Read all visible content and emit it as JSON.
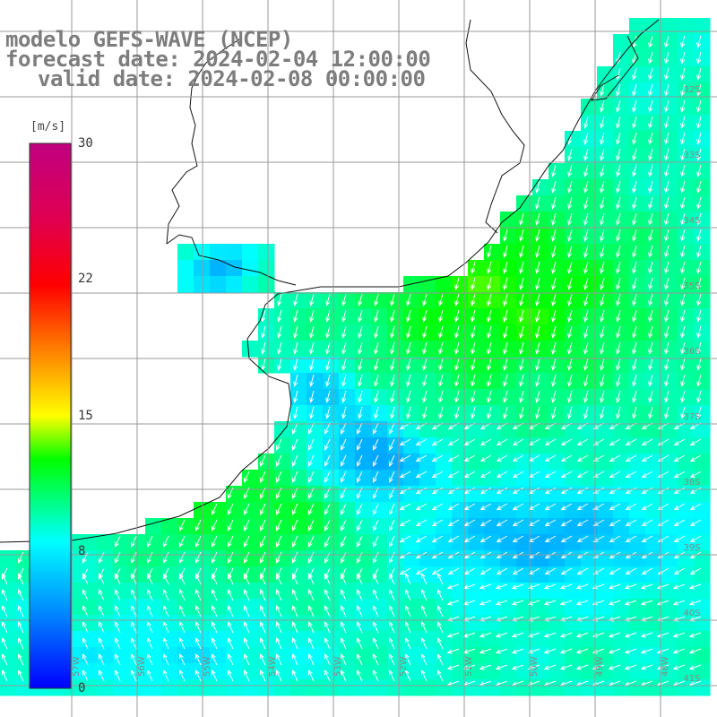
{
  "title": {
    "line1": "modelo GEFS-WAVE (NCEP)",
    "line2": "forecast date: 2024-02-04 12:00:00",
    "line3": "valid date: 2024-02-08 00:00:00"
  },
  "colorbar": {
    "unit": "[m/s]",
    "min": 0,
    "max": 30,
    "ticks": [
      "30",
      "22",
      "15",
      "8",
      "0"
    ],
    "tick_values": [
      30,
      22,
      15,
      8,
      0
    ]
  },
  "map": {
    "lat_labels": [
      "32S",
      "33S",
      "34S",
      "35S",
      "36S",
      "37S",
      "38S",
      "39S",
      "40S",
      "41S"
    ],
    "lon_labels": [
      "57W",
      "56W",
      "55W",
      "54W",
      "53W",
      "52W",
      "51W",
      "50W",
      "49W",
      "48W"
    ],
    "colors": {
      "land": "#ffffff",
      "grid": "#999999",
      "coast": "#111111",
      "arrows": "#ffffff",
      "title_text": "#7d7d7d"
    }
  }
}
